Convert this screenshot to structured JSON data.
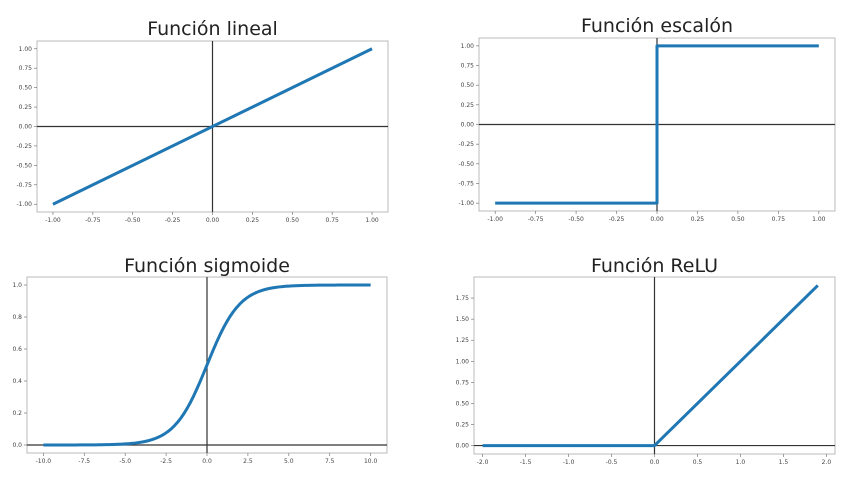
{
  "chart_data": [
    {
      "type": "line",
      "title": "Función lineal",
      "xlabel": "",
      "ylabel": "",
      "xlim": [
        -1.1,
        1.1
      ],
      "ylim": [
        -1.1,
        1.1
      ],
      "xticks": [
        "-1.00",
        "-0.75",
        "-0.50",
        "-0.25",
        "0.00",
        "0.25",
        "0.50",
        "0.75",
        "1.00"
      ],
      "yticks": [
        "-1.00",
        "-0.75",
        "-0.50",
        "-0.25",
        "0.00",
        "0.25",
        "0.50",
        "0.75",
        "1.00"
      ],
      "x": [
        -1.0,
        1.0
      ],
      "y": [
        -1.0,
        1.0
      ],
      "grid": false,
      "axis_lines": "x=0 and y=0 drawn in black",
      "color": "#1f77b4"
    },
    {
      "type": "line",
      "title": "Función escalón",
      "xlabel": "",
      "ylabel": "",
      "xlim": [
        -1.1,
        1.1
      ],
      "ylim": [
        -1.1,
        1.1
      ],
      "xticks": [
        "-1.00",
        "-0.75",
        "-0.50",
        "-0.25",
        "0.00",
        "0.25",
        "0.50",
        "0.75",
        "1.00"
      ],
      "yticks": [
        "-1.00",
        "-0.75",
        "-0.50",
        "-0.25",
        "0.00",
        "0.25",
        "0.50",
        "0.75",
        "1.00"
      ],
      "x": [
        -1.0,
        0.0,
        0.0,
        1.0
      ],
      "y": [
        -1.0,
        -1.0,
        1.0,
        1.0
      ],
      "grid": false,
      "axis_lines": "x=0 and y=0 drawn in black",
      "color": "#1f77b4"
    },
    {
      "type": "line",
      "title": "Función sigmoide",
      "xlabel": "",
      "ylabel": "",
      "xlim": [
        -11,
        11
      ],
      "ylim": [
        -0.05,
        1.05
      ],
      "xticks": [
        "-10.0",
        "-7.5",
        "-5.0",
        "-2.5",
        "0.0",
        "2.5",
        "5.0",
        "7.5",
        "10.0"
      ],
      "yticks": [
        "0.0",
        "0.2",
        "0.4",
        "0.6",
        "0.8",
        "1.0"
      ],
      "x": [
        -10,
        -7.5,
        -5,
        -4,
        -3,
        -2.5,
        -2,
        -1.5,
        -1,
        -0.5,
        0,
        0.5,
        1,
        1.5,
        2,
        2.5,
        3,
        4,
        5,
        7.5,
        10
      ],
      "y": [
        0.0,
        0.0006,
        0.0067,
        0.018,
        0.047,
        0.076,
        0.119,
        0.182,
        0.269,
        0.378,
        0.5,
        0.622,
        0.731,
        0.818,
        0.881,
        0.924,
        0.953,
        0.982,
        0.993,
        0.999,
        1.0
      ],
      "grid": false,
      "axis_lines": "x=0 and y=0 drawn in black",
      "color": "#1f77b4"
    },
    {
      "type": "line",
      "title": "Función ReLU",
      "xlabel": "",
      "ylabel": "",
      "xlim": [
        -2.1,
        2.1
      ],
      "ylim": [
        -0.1,
        2.0
      ],
      "xticks": [
        "-2.0",
        "-1.5",
        "-1.0",
        "-0.5",
        "0.0",
        "0.5",
        "1.0",
        "1.5",
        "2.0"
      ],
      "yticks": [
        "0.00",
        "0.25",
        "0.50",
        "0.75",
        "1.00",
        "1.25",
        "1.50",
        "1.75"
      ],
      "x": [
        -2.0,
        0.0,
        1.9
      ],
      "y": [
        0.0,
        0.0,
        1.9
      ],
      "grid": false,
      "axis_lines": "x=0 and y=0 drawn in black",
      "color": "#1f77b4"
    }
  ],
  "panels": [
    {
      "title": "Función lineal"
    },
    {
      "title": "Función escalón"
    },
    {
      "title": "Función sigmoide"
    },
    {
      "title": "Función ReLU"
    }
  ]
}
